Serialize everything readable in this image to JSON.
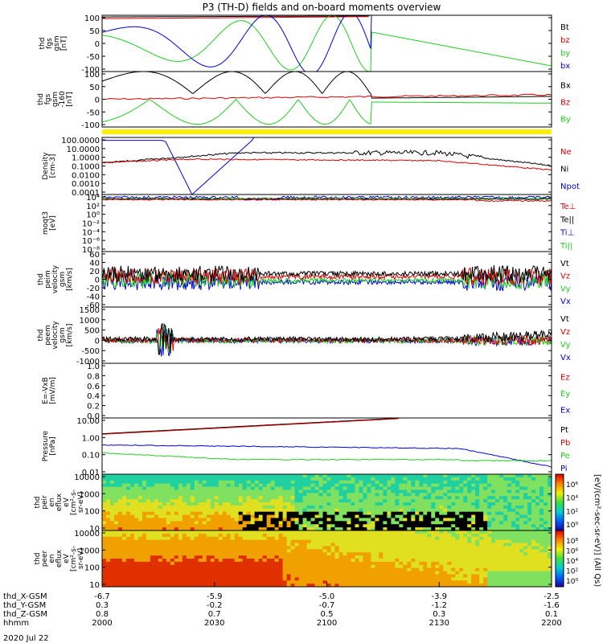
{
  "chart_data": {
    "type": "line",
    "title": "P3 (TH-D) fields and on-board moments overview",
    "date": "2020 Jul 22",
    "time_axis": {
      "hhmm": [
        "2000",
        "2030",
        "2100",
        "2130",
        "2200"
      ],
      "range": [
        2000,
        2200
      ],
      "ephemeris": [
        {
          "label": "thd_X-GSM",
          "values": [
            "-6.7",
            "-5.9",
            "-5.0",
            "-3.9",
            "-2.5"
          ]
        },
        {
          "label": "thd_Y-GSM",
          "values": [
            "0.3",
            "-0.2",
            "-0.7",
            "-1.2",
            "-1.6"
          ]
        },
        {
          "label": "thd_Z-GSM",
          "values": [
            "0.8",
            "0.7",
            "0.5",
            "0.3",
            "0.1"
          ]
        },
        {
          "label": "hhmm",
          "values": [
            "2000",
            "2030",
            "2100",
            "2130",
            "2200"
          ]
        }
      ]
    },
    "panels": [
      {
        "id": "fgs",
        "ylabel": [
          "thd",
          "fgs",
          "gsm",
          "[nT]"
        ],
        "yticks": [
          "100",
          "50",
          "0",
          "-50",
          "-100"
        ],
        "ylim": [
          -100,
          100
        ],
        "legend": [
          {
            "name": "Bt",
            "color": "#000000"
          },
          {
            "name": "bz",
            "color": "#dd0000"
          },
          {
            "name": "by",
            "color": "#22cc22"
          },
          {
            "name": "bx",
            "color": "#0000dd"
          }
        ]
      },
      {
        "id": "fgs-zoom",
        "ylabel": [
          "thd",
          "fgs",
          "gsm",
          "-160",
          "[nT]"
        ],
        "yticks": [
          "100",
          "50",
          "0",
          "-50",
          "-100"
        ],
        "ylim": [
          -125,
          110
        ],
        "legend": [
          {
            "name": "Bx",
            "color": "#000000"
          },
          {
            "name": "Bz",
            "color": "#dd0000"
          },
          {
            "name": "By",
            "color": "#22cc22"
          }
        ]
      },
      {
        "id": "density",
        "ylabel": [
          "Density",
          "[cm-3]"
        ],
        "yticks": [
          "100.0000",
          "10.0000",
          "1.0000",
          "0.1000",
          "0.0100",
          "0.0010",
          "0.0001"
        ],
        "ylim": [
          0.0001,
          300
        ],
        "scale": "log",
        "legend": [
          {
            "name": "Ne",
            "color": "#dd0000"
          },
          {
            "name": "Ni",
            "color": "#000000"
          },
          {
            "name": "Npot",
            "color": "#0000dd"
          }
        ]
      },
      {
        "id": "temperature",
        "ylabel": [
          "moqt3",
          "[eV]"
        ],
        "yticks": [
          "10⁴",
          "10²",
          "10⁰",
          "10⁻²",
          "10⁻⁴",
          "10⁻⁶",
          "10⁻⁸"
        ],
        "ylim": [
          1e-09,
          100000.0
        ],
        "scale": "log",
        "legend": [
          {
            "name": "Te⊥",
            "color": "#dd0000"
          },
          {
            "name": "Te||",
            "color": "#000000"
          },
          {
            "name": "Ti⊥",
            "color": "#0000dd"
          },
          {
            "name": "Ti||",
            "color": "#22cc22"
          }
        ]
      },
      {
        "id": "peim-velocity",
        "ylabel": [
          "thd",
          "peim",
          "velocity",
          "gsm",
          "[km/s]"
        ],
        "yticks": [
          "60",
          "40",
          "20",
          "0",
          "-20",
          "-40",
          "-60"
        ],
        "ylim": [
          -60,
          60
        ],
        "legend": [
          {
            "name": "Vt",
            "color": "#000000"
          },
          {
            "name": "Vz",
            "color": "#dd0000"
          },
          {
            "name": "Vy",
            "color": "#22cc22"
          },
          {
            "name": "Vx",
            "color": "#0000dd"
          }
        ]
      },
      {
        "id": "peem-velocity",
        "ylabel": [
          "thd",
          "peem",
          "velocity",
          "gsm",
          "[km/s]"
        ],
        "yticks": [
          "1500",
          "1000",
          "500",
          "0",
          "-500",
          "-1000"
        ],
        "ylim": [
          -1000,
          1500
        ],
        "legend": [
          {
            "name": "Vt",
            "color": "#000000"
          },
          {
            "name": "Vz",
            "color": "#dd0000"
          },
          {
            "name": "Vy",
            "color": "#22cc22"
          },
          {
            "name": "Vx",
            "color": "#0000dd"
          }
        ]
      },
      {
        "id": "efield",
        "ylabel": [
          "E=-VxB",
          "[mV/m]"
        ],
        "yticks": [
          "1.0",
          "0.8",
          "0.6",
          "0.4",
          "0.2",
          "0.0"
        ],
        "ylim": [
          0,
          1
        ],
        "legend": [
          {
            "name": "Ez",
            "color": "#dd0000"
          },
          {
            "name": "Ey",
            "color": "#22cc22"
          },
          {
            "name": "Ex",
            "color": "#0000dd"
          }
        ]
      },
      {
        "id": "pressure",
        "ylabel": [
          "Pressure",
          "[nPa]"
        ],
        "yticks": [
          "10.00",
          "1.00",
          "0.10",
          "0.01"
        ],
        "ylim": [
          0.002,
          30
        ],
        "scale": "log",
        "legend": [
          {
            "name": "Pt",
            "color": "#000000"
          },
          {
            "name": "Pb",
            "color": "#dd0000"
          },
          {
            "name": "Pe",
            "color": "#22cc22"
          },
          {
            "name": "Pi",
            "color": "#0000dd"
          }
        ]
      },
      {
        "id": "peir",
        "type": "heatmap",
        "ylabel": [
          "thd",
          "peir",
          "en",
          "eflux",
          "eV",
          "[cm²-s-",
          "sr-eV]"
        ],
        "yticks": [
          "10000",
          "1000",
          "100",
          "10"
        ],
        "ylim": [
          5,
          25000
        ],
        "colorbar_ticks": [
          "10⁶",
          "10⁴",
          "10²",
          "10⁰"
        ]
      },
      {
        "id": "peer",
        "type": "heatmap",
        "ylabel": [
          "thd",
          "peer",
          "en",
          "eflux",
          "eV",
          "[cm²-s-",
          "sr-eV]"
        ],
        "yticks": [
          "10000",
          "1000",
          "100",
          "10"
        ],
        "ylim": [
          5,
          25000
        ],
        "colorbar_ticks": [
          "10⁸",
          "10⁶",
          "10⁴",
          "10²",
          "10⁰"
        ]
      }
    ],
    "colorbar_label": "[eV/(cm²-sec-sr-eV)] (All Qs)",
    "flag_bar_color": "#ffee00"
  }
}
